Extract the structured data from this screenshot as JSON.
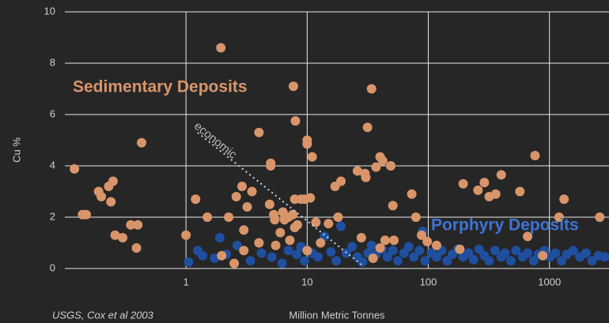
{
  "chart_data": {
    "type": "scatter",
    "y_label": "Cu %",
    "x_label": "Million Metric Tonnes",
    "source": "USGS, Cox et al 2003",
    "annotation": "economic",
    "xscale": "log",
    "grid": true,
    "xlim": [
      0.1,
      3100
    ],
    "ylim": [
      0,
      10
    ],
    "xticks": [
      1,
      10,
      100,
      1000
    ],
    "yticks": [
      0,
      2,
      4,
      6,
      8,
      10
    ],
    "series": [
      {
        "name": "Sedimentary Deposits",
        "color": "#d9956a",
        "x": [
          0.12,
          0.14,
          0.15,
          0.19,
          0.2,
          0.23,
          0.25,
          0.24,
          0.26,
          0.3,
          0.35,
          0.4,
          0.39,
          0.43,
          1.0,
          1.2,
          1.5,
          1.94,
          1.97,
          2.25,
          2.5,
          2.6,
          2.9,
          3.0,
          3.2,
          3.0,
          3.5,
          4.0,
          4.0,
          4.9,
          5.0,
          5.0,
          5.3,
          5.4,
          5.5,
          6.0,
          6.3,
          6.5,
          7.0,
          7.2,
          7.7,
          8.0,
          7.9,
          7.9,
          7.6,
          8.3,
          8.9,
          9.5,
          10,
          10,
          10,
          10.6,
          11,
          11.8,
          12.9,
          15,
          17,
          18,
          19,
          26,
          28,
          30,
          30.5,
          31.5,
          34,
          35,
          37,
          40,
          42,
          40,
          44,
          49,
          51,
          52,
          73,
          79,
          88,
          98,
          117,
          194,
          182,
          257,
          290,
          318,
          360,
          400,
          570,
          660,
          760,
          880,
          1200,
          1320,
          2600
        ],
        "values": [
          3.88,
          2.1,
          2.1,
          3.0,
          2.8,
          3.2,
          3.4,
          2.6,
          1.3,
          1.2,
          1.7,
          1.7,
          0.8,
          4.9,
          1.3,
          2.7,
          2.0,
          8.6,
          0.5,
          2.0,
          0.2,
          2.8,
          3.2,
          1.5,
          2.4,
          0.7,
          3.0,
          5.3,
          1.0,
          2.5,
          4.1,
          4.0,
          2.1,
          1.9,
          0.9,
          1.4,
          2.2,
          1.9,
          2.0,
          1.1,
          7.1,
          5.75,
          2.7,
          1.6,
          2.1,
          1.7,
          2.7,
          2.7,
          5.0,
          4.85,
          0.7,
          2.75,
          4.35,
          1.8,
          1.0,
          1.75,
          3.2,
          2.0,
          3.4,
          3.8,
          1.2,
          3.7,
          3.55,
          5.5,
          7.0,
          0.4,
          3.95,
          4.35,
          4.2,
          0.8,
          1.1,
          4.0,
          2.45,
          1.1,
          2.9,
          2.0,
          1.3,
          1.05,
          0.9,
          3.3,
          0.75,
          3.05,
          3.35,
          2.8,
          2.9,
          3.65,
          3.0,
          1.25,
          4.4,
          0.5,
          2.0,
          2.7,
          2.0
        ]
      },
      {
        "name": "Porphyry Deposits",
        "color": "#1f4f9e",
        "x": [
          1.05,
          1.25,
          1.37,
          1.72,
          1.9,
          2.15,
          2.65,
          3.4,
          4.2,
          5.1,
          6.2,
          7.0,
          8.2,
          8.9,
          9.5,
          11,
          12.3,
          13.9,
          15.7,
          17.4,
          19,
          21,
          23.5,
          26,
          28.6,
          31.8,
          34,
          37,
          41.5,
          46,
          51,
          56,
          63,
          69,
          76,
          84.5,
          90,
          94,
          106,
          117,
          129,
          143,
          158,
          175,
          194,
          215,
          236,
          262,
          290,
          318,
          355,
          400,
          430,
          480,
          530,
          600,
          660,
          740,
          810,
          910,
          1010,
          1120,
          1260,
          1390,
          1570,
          1780,
          2000,
          2250,
          2540,
          2860
        ],
        "values": [
          0.25,
          0.7,
          0.5,
          0.4,
          1.2,
          0.55,
          0.9,
          0.3,
          0.6,
          0.45,
          0.2,
          0.7,
          0.55,
          0.85,
          0.3,
          0.6,
          0.45,
          1.25,
          0.65,
          0.3,
          1.65,
          0.6,
          0.85,
          0.45,
          0.25,
          0.6,
          0.9,
          0.55,
          0.75,
          0.45,
          0.7,
          0.3,
          0.6,
          0.85,
          0.45,
          0.7,
          1.45,
          0.3,
          0.6,
          0.45,
          0.7,
          0.3,
          0.55,
          0.75,
          0.45,
          0.6,
          0.35,
          0.75,
          0.5,
          0.3,
          0.7,
          0.45,
          0.6,
          0.3,
          0.7,
          0.45,
          0.6,
          0.3,
          0.55,
          0.7,
          0.45,
          0.6,
          0.3,
          0.55,
          0.7,
          0.45,
          0.6,
          0.3,
          0.5,
          0.45
        ]
      }
    ]
  }
}
